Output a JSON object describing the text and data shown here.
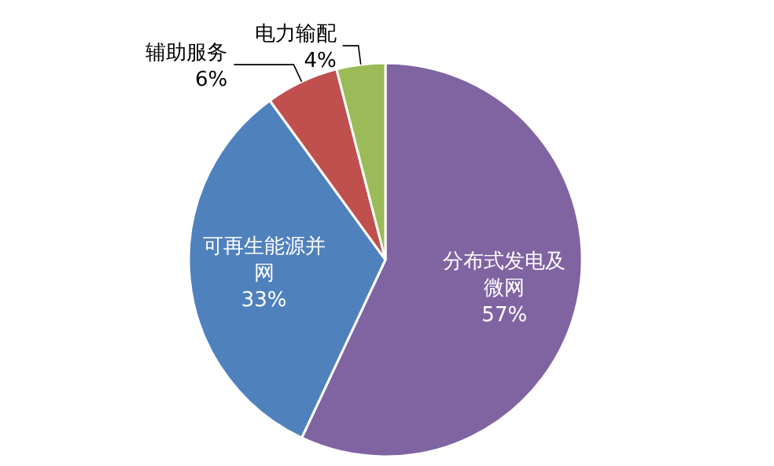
{
  "chart_data": {
    "type": "pie",
    "categories": [
      "分布式发电及微网",
      "可再生能源并网",
      "辅助服务",
      "电力输配"
    ],
    "values": [
      57,
      33,
      6,
      4
    ],
    "value_labels": [
      "57%",
      "33%",
      "6%",
      "4%"
    ],
    "colors": [
      "#8064a2",
      "#4f81bd",
      "#c0504d",
      "#9bbb59"
    ]
  }
}
